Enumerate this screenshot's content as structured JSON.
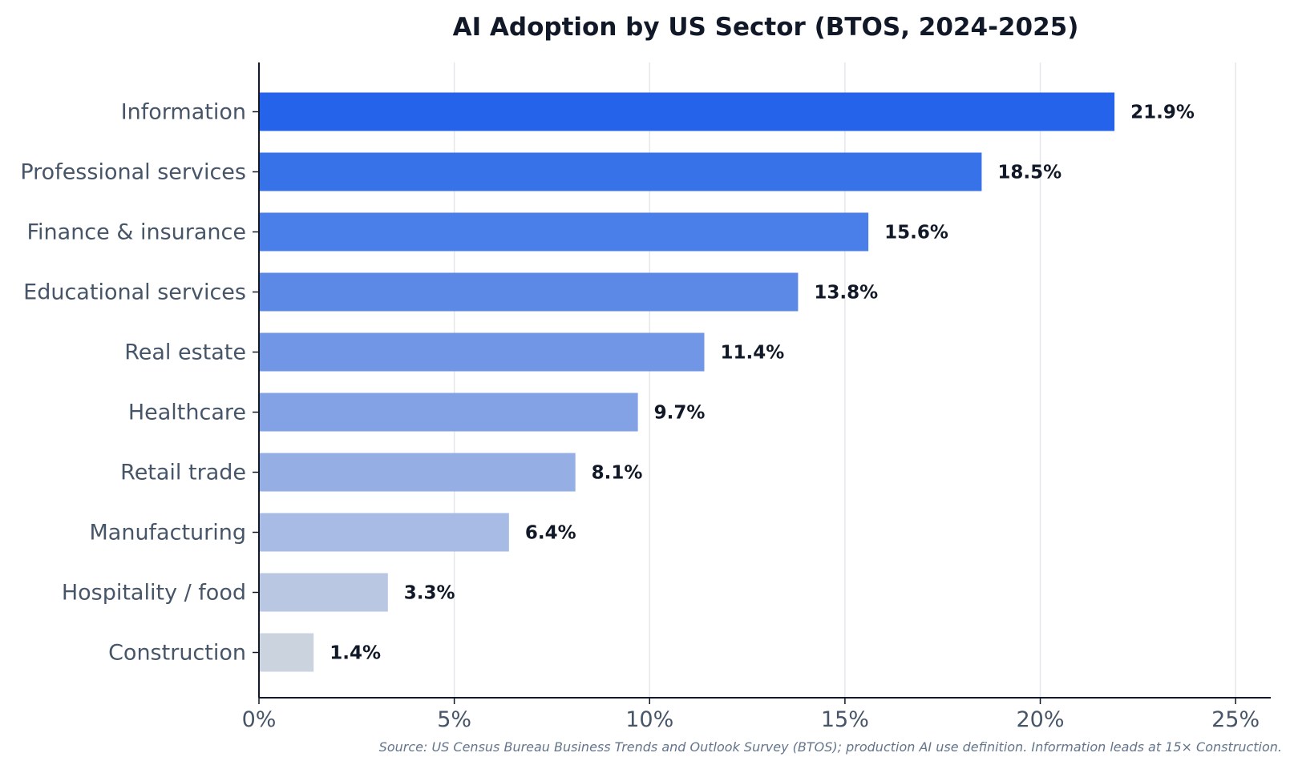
{
  "chart_data": {
    "type": "bar",
    "orientation": "horizontal",
    "title": "AI Adoption by US Sector (BTOS, 2024-2025)",
    "xlabel": "",
    "ylabel": "",
    "categories": [
      "Information",
      "Professional services",
      "Finance & insurance",
      "Educational services",
      "Real estate",
      "Healthcare",
      "Retail trade",
      "Manufacturing",
      "Hospitality / food",
      "Construction"
    ],
    "values": [
      21.9,
      18.5,
      15.6,
      13.8,
      11.4,
      9.7,
      8.1,
      6.4,
      3.3,
      1.4
    ],
    "data_labels": [
      "21.9%",
      "18.5%",
      "15.6%",
      "13.8%",
      "11.4%",
      "9.7%",
      "8.1%",
      "6.4%",
      "3.3%",
      "1.4%"
    ],
    "xlim": [
      0,
      25.9
    ],
    "x_ticks": [
      0,
      5,
      10,
      15,
      20,
      25
    ],
    "x_tick_labels": [
      "0%",
      "5%",
      "10%",
      "15%",
      "20%",
      "25%"
    ],
    "grid": "vertical",
    "legend": "none",
    "colors": [
      "#2563eb",
      "#3872e9",
      "#4a7ee8",
      "#5c88e6",
      "#7096e5",
      "#82a2e5",
      "#95afe5",
      "#a8bbe4",
      "#b9c7e2",
      "#cbd3df"
    ],
    "footnote": "Source: US Census Bureau Business Trends and Outlook Survey (BTOS); production AI use definition. Information leads at 15× Construction."
  }
}
